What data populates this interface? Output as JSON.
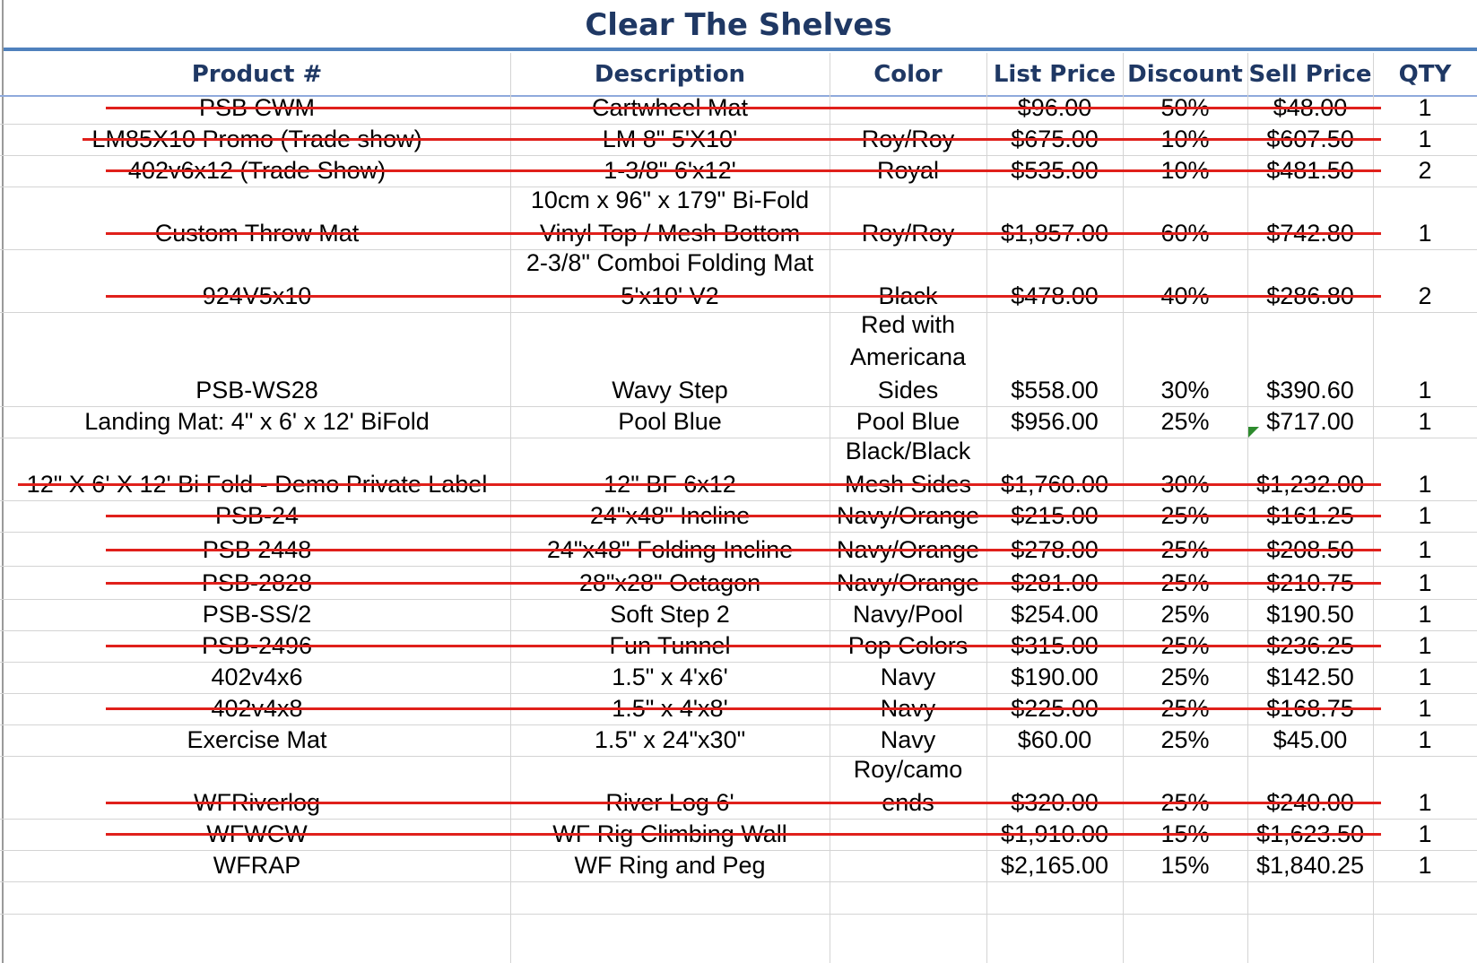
{
  "title": "Clear The Shelves",
  "headers": [
    "Product #",
    "Description",
    "Color",
    "List Price",
    "Discount",
    "Sell Price",
    "QTY"
  ],
  "rows": [
    {
      "product": [
        "PSB CWM"
      ],
      "description": [
        "Cartwheel Mat"
      ],
      "color": [
        ""
      ],
      "list": "$96.00",
      "discount": "50%",
      "sell": "$48.00",
      "qty": "1",
      "struck": true
    },
    {
      "product": [
        "LM85X10 Promo (Trade show)"
      ],
      "description": [
        "LM 8\" 5'X10'"
      ],
      "color": [
        "Roy/Roy"
      ],
      "list": "$675.00",
      "discount": "10%",
      "sell": "$607.50",
      "qty": "1",
      "struck": true
    },
    {
      "product": [
        "402v6x12 (Trade Show)"
      ],
      "description": [
        "1-3/8\" 6'x12'"
      ],
      "color": [
        "Royal"
      ],
      "list": "$535.00",
      "discount": "10%",
      "sell": "$481.50",
      "qty": "2",
      "struck": true
    },
    {
      "product": [
        "Custom Throw Mat"
      ],
      "description": [
        "10cm x 96\" x 179\" Bi-Fold",
        "Vinyl Top / Mesh Bottom"
      ],
      "color": [
        "Roy/Roy"
      ],
      "list": "$1,857.00",
      "discount": "60%",
      "sell": "$742.80",
      "qty": "1",
      "struck": true
    },
    {
      "product": [
        "924V5x10"
      ],
      "description": [
        "2-3/8\" Comboi Folding Mat",
        "5'x10' V2"
      ],
      "color": [
        "Black"
      ],
      "list": "$478.00",
      "discount": "40%",
      "sell": "$286.80",
      "qty": "2",
      "struck": true
    },
    {
      "product": [
        "PSB-WS28"
      ],
      "description": [
        "Wavy Step"
      ],
      "color": [
        "Red with",
        "Americana",
        "Sides"
      ],
      "list": "$558.00",
      "discount": "30%",
      "sell": "$390.60",
      "qty": "1",
      "struck": false
    },
    {
      "product": [
        "Landing Mat:  4\" x 6' x 12' BiFold"
      ],
      "description": [
        "Pool Blue"
      ],
      "color": [
        "Pool Blue"
      ],
      "list": "$956.00",
      "discount": "25%",
      "sell": "$717.00",
      "qty": "1",
      "struck": false
    },
    {
      "product": [
        "12\" X 6' X 12' Bi Fold - Demo Private Label"
      ],
      "description": [
        "12\" BF 6x12"
      ],
      "color": [
        "Black/Black",
        "Mesh Sides"
      ],
      "list": "$1,760.00",
      "discount": "30%",
      "sell": "$1,232.00",
      "qty": "1",
      "struck": true
    },
    {
      "product": [
        "PSB-24"
      ],
      "description": [
        "24\"x48\" Incline"
      ],
      "color": [
        "Navy/Orange"
      ],
      "list": "$215.00",
      "discount": "25%",
      "sell": "$161.25",
      "qty": "1",
      "struck": true
    },
    {
      "product": [
        "PSB 2448"
      ],
      "description": [
        "24\"x48\" Folding Incline"
      ],
      "color": [
        "Navy/Orange"
      ],
      "list": "$278.00",
      "discount": "25%",
      "sell": "$208.50",
      "qty": "1",
      "struck": true
    },
    {
      "product": [
        "PSB-2828"
      ],
      "description": [
        "28\"x28\" Octagon"
      ],
      "color": [
        "Navy/Orange"
      ],
      "list": "$281.00",
      "discount": "25%",
      "sell": "$210.75",
      "qty": "1",
      "struck": true
    },
    {
      "product": [
        "PSB-SS/2"
      ],
      "description": [
        "Soft Step 2"
      ],
      "color": [
        "Navy/Pool"
      ],
      "list": "$254.00",
      "discount": "25%",
      "sell": "$190.50",
      "qty": "1",
      "struck": false
    },
    {
      "product": [
        "PSB-2496"
      ],
      "description": [
        "Fun Tunnel"
      ],
      "color": [
        "Pop Colors"
      ],
      "list": "$315.00",
      "discount": "25%",
      "sell": "$236.25",
      "qty": "1",
      "struck": true
    },
    {
      "product": [
        "402v4x6"
      ],
      "description": [
        "1.5\" x 4'x6'"
      ],
      "color": [
        "Navy"
      ],
      "list": "$190.00",
      "discount": "25%",
      "sell": "$142.50",
      "qty": "1",
      "struck": false
    },
    {
      "product": [
        "402v4x8"
      ],
      "description": [
        "1.5\" x 4'x8'"
      ],
      "color": [
        "Navy"
      ],
      "list": "$225.00",
      "discount": "25%",
      "sell": "$168.75",
      "qty": "1",
      "struck": true
    },
    {
      "product": [
        "Exercise Mat"
      ],
      "description": [
        "1.5\" x 24\"x30\""
      ],
      "color": [
        "Navy"
      ],
      "list": "$60.00",
      "discount": "25%",
      "sell": "$45.00",
      "qty": "1",
      "struck": false
    },
    {
      "product": [
        "WFRiverlog"
      ],
      "description": [
        "River Log 6'"
      ],
      "color": [
        "Roy/camo",
        "ends"
      ],
      "list": "$320.00",
      "discount": "25%",
      "sell": "$240.00",
      "qty": "1",
      "struck": true
    },
    {
      "product": [
        "WFWCW"
      ],
      "description": [
        "WF Rig Climbing Wall"
      ],
      "color": [
        ""
      ],
      "list": "$1,910.00",
      "discount": "15%",
      "sell": "$1,623.50",
      "qty": "1",
      "struck": true
    },
    {
      "product": [
        "WFRAP"
      ],
      "description": [
        "WF Ring and Peg"
      ],
      "color": [
        ""
      ],
      "list": "$2,165.00",
      "discount": "15%",
      "sell": "$1,840.25",
      "qty": "1",
      "struck": false
    },
    {
      "product": [
        ""
      ],
      "description": [
        ""
      ],
      "color": [
        ""
      ],
      "list": "",
      "discount": "",
      "sell": "",
      "qty": "",
      "struck": false
    }
  ]
}
